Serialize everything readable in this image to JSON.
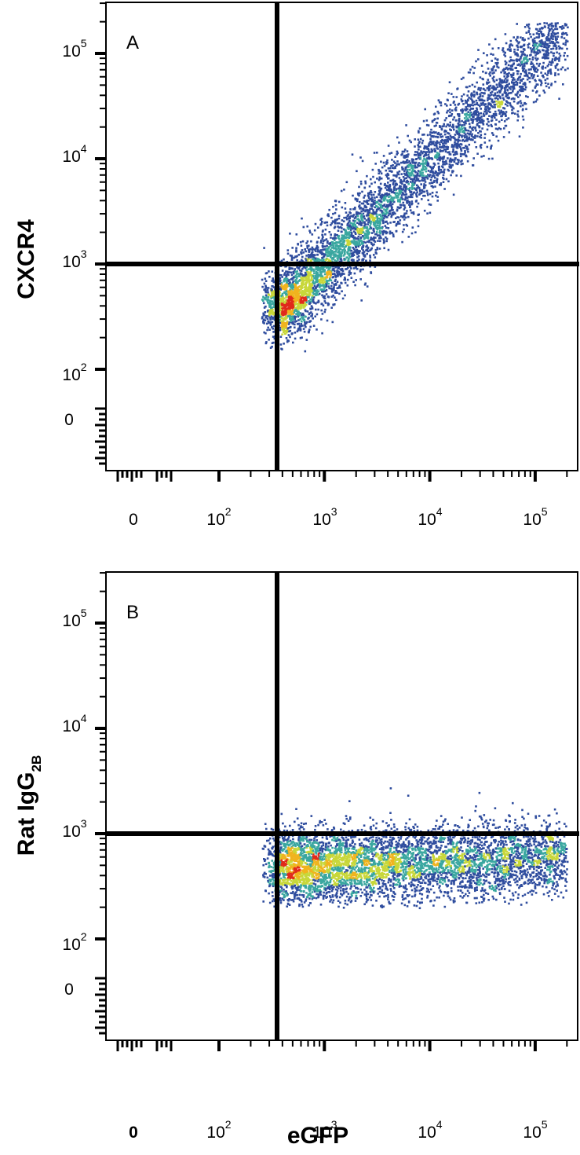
{
  "chart_data": [
    {
      "type": "scatter",
      "panel_label": "A",
      "ylabel": "CXCR4",
      "xlabel": "",
      "x_scale": "biexponential (log)",
      "y_scale": "biexponential (log)",
      "x_tick_labels": [
        {
          "value": 0,
          "base": "0",
          "exp": ""
        },
        {
          "value": 100,
          "base": "10",
          "exp": "2"
        },
        {
          "value": 1000,
          "base": "10",
          "exp": "3"
        },
        {
          "value": 10000,
          "base": "10",
          "exp": "4"
        },
        {
          "value": 100000,
          "base": "10",
          "exp": "5"
        }
      ],
      "y_tick_labels": [
        {
          "value": 0,
          "base": "0",
          "exp": ""
        },
        {
          "value": 100,
          "base": "10",
          "exp": "2"
        },
        {
          "value": 1000,
          "base": "10",
          "exp": "3"
        },
        {
          "value": 10000,
          "base": "10",
          "exp": "4"
        },
        {
          "value": 100000,
          "base": "10",
          "exp": "5"
        }
      ],
      "gates": {
        "x": 300,
        "y": 800
      },
      "population": {
        "shape": "diagonal band",
        "x_range": [
          250,
          200000
        ],
        "y_range": [
          150,
          200000
        ],
        "peak_density": {
          "x": 1300,
          "y": 900
        },
        "trend": "CXCR4 rises with eGFP"
      },
      "grid": false,
      "legend": "none"
    },
    {
      "type": "scatter",
      "panel_label": "B",
      "ylabel": "Rat IgG",
      "ylabel_sub": "2B",
      "xlabel": "eGFP",
      "x_scale": "biexponential (log)",
      "y_scale": "biexponential (log)",
      "x_tick_labels": [
        {
          "value": 0,
          "base": "0",
          "exp": ""
        },
        {
          "value": 100,
          "base": "10",
          "exp": "2"
        },
        {
          "value": 1000,
          "base": "10",
          "exp": "3"
        },
        {
          "value": 10000,
          "base": "10",
          "exp": "4"
        },
        {
          "value": 100000,
          "base": "10",
          "exp": "5"
        }
      ],
      "y_tick_labels": [
        {
          "value": 0,
          "base": "0",
          "exp": ""
        },
        {
          "value": 100,
          "base": "10",
          "exp": "2"
        },
        {
          "value": 1000,
          "base": "10",
          "exp": "3"
        },
        {
          "value": 10000,
          "base": "10",
          "exp": "4"
        },
        {
          "value": 100000,
          "base": "10",
          "exp": "5"
        }
      ],
      "gates": {
        "x": 300,
        "y": 800
      },
      "population": {
        "shape": "horizontal band",
        "x_range": [
          250,
          200000
        ],
        "y_range": [
          200,
          3000
        ],
        "peak_density": {
          "x": 2000,
          "y": 550
        },
        "trend": "flat isotype signal across eGFP"
      },
      "grid": false,
      "legend": "none"
    }
  ],
  "colors": {
    "density_low": "#2f4d9e",
    "density_mid": "#3aa7a0",
    "density_high_1": "#c8d73a",
    "density_high_2": "#f0b41e",
    "density_peak": "#e02a1b",
    "axis": "#000000",
    "background": "#ffffff"
  }
}
